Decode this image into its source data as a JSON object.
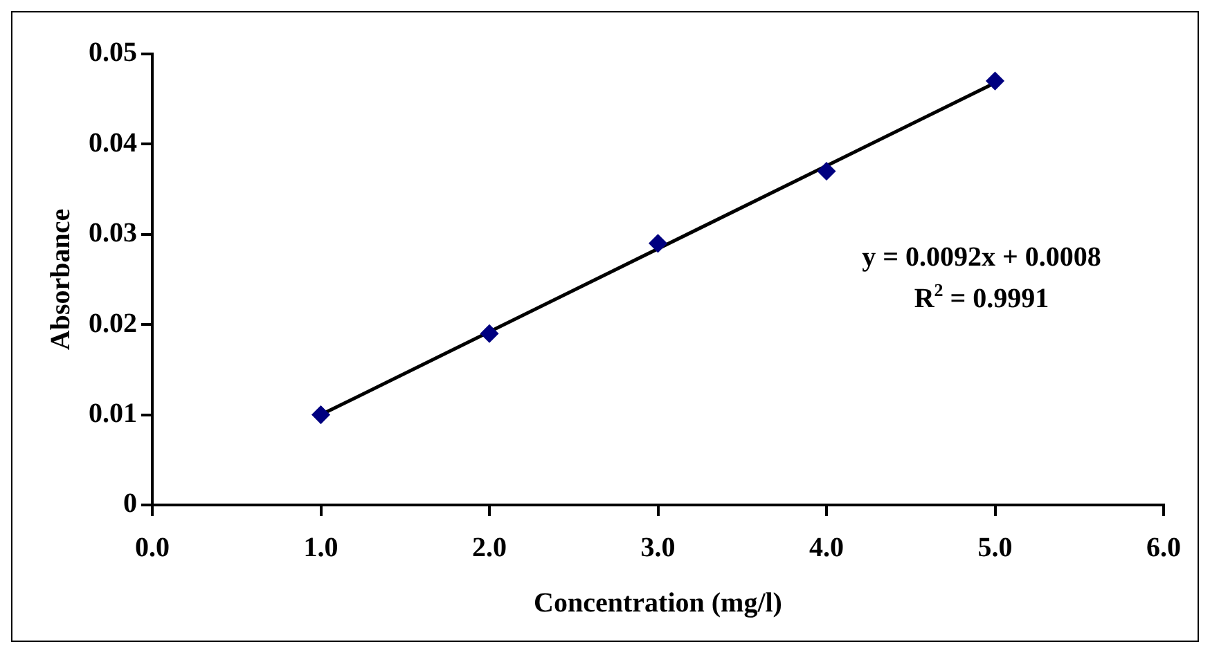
{
  "chart_data": {
    "type": "scatter",
    "xlabel": "Concentration (mg/l)",
    "ylabel": "Absorbance",
    "xlim": [
      0,
      6
    ],
    "xticks": [
      {
        "value": 0,
        "label": "0.0"
      },
      {
        "value": 1,
        "label": "1.0"
      },
      {
        "value": 2,
        "label": "2.0"
      },
      {
        "value": 3,
        "label": "3.0"
      },
      {
        "value": 4,
        "label": "4.0"
      },
      {
        "value": 5,
        "label": "5.0"
      },
      {
        "value": 6,
        "label": "6.0"
      }
    ],
    "ylim": [
      0,
      0.05
    ],
    "yticks": [
      0,
      0.01,
      0.02,
      0.03,
      0.04,
      0.05
    ],
    "series": [
      {
        "type": "scatter",
        "color": "#000080",
        "x": [
          1,
          2,
          3,
          4,
          5
        ],
        "values": [
          0.01,
          0.019,
          0.029,
          0.037,
          0.047
        ],
        "marker": "diamond"
      },
      {
        "type": "line",
        "color": "#000000",
        "x": [
          1,
          5
        ],
        "values": [
          0.01,
          0.0468
        ],
        "marker": "none",
        "line_style": "solid"
      }
    ],
    "annotations": [
      "y = 0.0092x + 0.0008",
      "R$^{2}$ = 0.9991"
    ],
    "grid": false,
    "legend": false
  }
}
